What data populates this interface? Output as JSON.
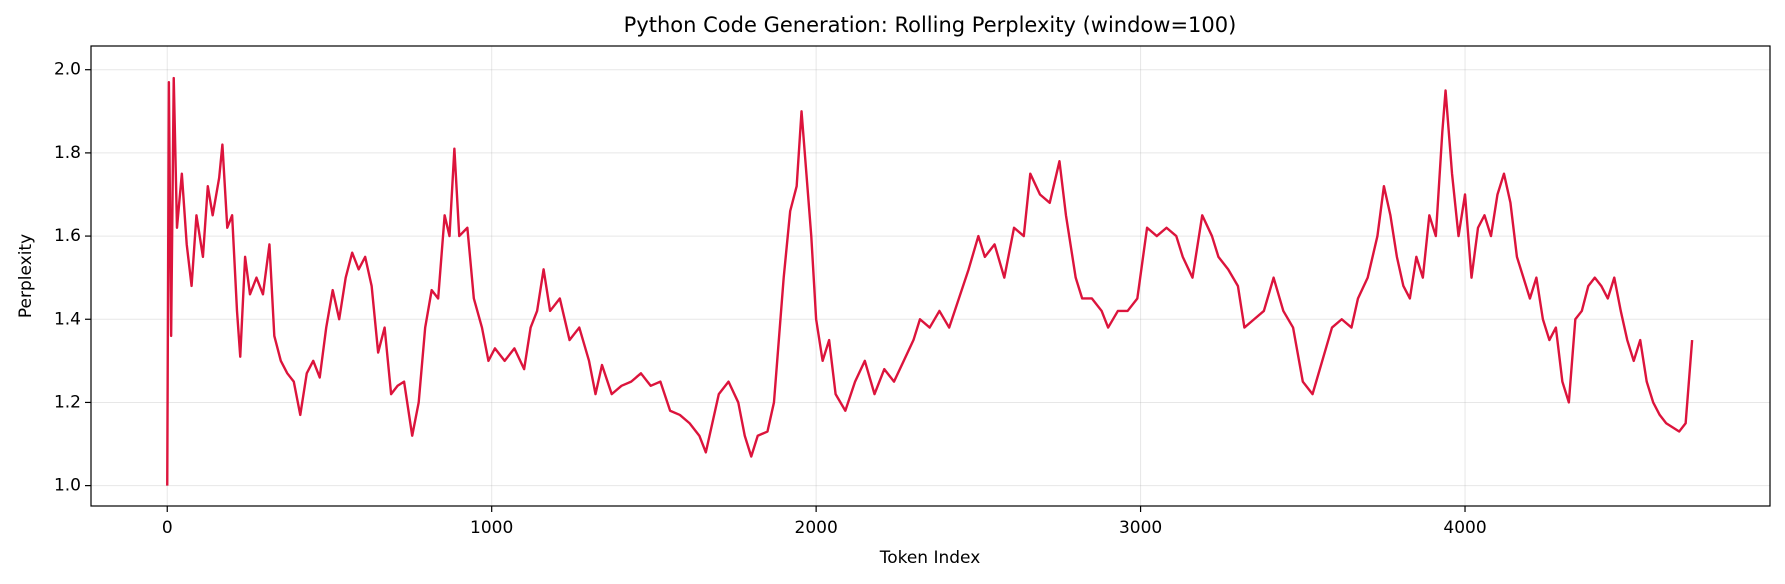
{
  "chart_data": {
    "type": "line",
    "title": "Python Code Generation: Rolling Perplexity (window=100)",
    "x_label": "Token Index",
    "y_label": "Perplexity",
    "x": [
      0,
      5,
      12,
      20,
      30,
      45,
      60,
      75,
      90,
      110,
      125,
      140,
      160,
      170,
      185,
      200,
      215,
      225,
      240,
      255,
      275,
      295,
      315,
      330,
      350,
      370,
      390,
      410,
      430,
      450,
      470,
      490,
      510,
      530,
      550,
      570,
      590,
      610,
      630,
      650,
      670,
      690,
      710,
      730,
      755,
      775,
      795,
      815,
      835,
      855,
      870,
      885,
      900,
      925,
      945,
      970,
      990,
      1010,
      1040,
      1070,
      1100,
      1120,
      1140,
      1160,
      1180,
      1210,
      1240,
      1270,
      1300,
      1320,
      1340,
      1370,
      1400,
      1430,
      1460,
      1490,
      1520,
      1550,
      1580,
      1610,
      1640,
      1660,
      1680,
      1700,
      1730,
      1760,
      1780,
      1800,
      1820,
      1850,
      1870,
      1880,
      1900,
      1920,
      1940,
      1955,
      1970,
      1985,
      2000,
      2020,
      2040,
      2060,
      2090,
      2120,
      2150,
      2180,
      2210,
      2240,
      2270,
      2300,
      2320,
      2350,
      2380,
      2410,
      2440,
      2470,
      2500,
      2520,
      2550,
      2580,
      2610,
      2640,
      2660,
      2690,
      2720,
      2750,
      2770,
      2800,
      2820,
      2850,
      2880,
      2900,
      2930,
      2960,
      2990,
      3020,
      3050,
      3080,
      3110,
      3130,
      3160,
      3190,
      3220,
      3240,
      3270,
      3300,
      3320,
      3350,
      3380,
      3410,
      3440,
      3470,
      3500,
      3530,
      3560,
      3590,
      3620,
      3650,
      3670,
      3700,
      3730,
      3750,
      3770,
      3790,
      3810,
      3830,
      3850,
      3870,
      3890,
      3910,
      3930,
      3940,
      3960,
      3980,
      4000,
      4020,
      4040,
      4060,
      4080,
      4100,
      4120,
      4140,
      4160,
      4180,
      4200,
      4220,
      4240,
      4260,
      4280,
      4300,
      4320,
      4340,
      4360,
      4380,
      4400,
      4420,
      4440,
      4460,
      4480,
      4500,
      4520,
      4540,
      4560,
      4580,
      4600,
      4620,
      4640,
      4660,
      4680,
      4700
    ],
    "series": [
      {
        "name": "Rolling Perplexity",
        "color": "#dc143c",
        "values": [
          1.0,
          1.97,
          1.36,
          1.98,
          1.62,
          1.75,
          1.58,
          1.48,
          1.65,
          1.55,
          1.72,
          1.65,
          1.74,
          1.82,
          1.62,
          1.65,
          1.42,
          1.31,
          1.55,
          1.46,
          1.5,
          1.46,
          1.58,
          1.36,
          1.3,
          1.27,
          1.25,
          1.17,
          1.27,
          1.3,
          1.26,
          1.38,
          1.47,
          1.4,
          1.5,
          1.56,
          1.52,
          1.55,
          1.48,
          1.32,
          1.38,
          1.22,
          1.24,
          1.25,
          1.12,
          1.2,
          1.38,
          1.47,
          1.45,
          1.65,
          1.6,
          1.81,
          1.6,
          1.62,
          1.45,
          1.38,
          1.3,
          1.33,
          1.3,
          1.33,
          1.28,
          1.38,
          1.42,
          1.52,
          1.42,
          1.45,
          1.35,
          1.38,
          1.3,
          1.22,
          1.29,
          1.22,
          1.24,
          1.25,
          1.27,
          1.24,
          1.25,
          1.18,
          1.17,
          1.15,
          1.12,
          1.08,
          1.15,
          1.22,
          1.25,
          1.2,
          1.12,
          1.07,
          1.12,
          1.13,
          1.2,
          1.3,
          1.5,
          1.66,
          1.72,
          1.9,
          1.75,
          1.6,
          1.4,
          1.3,
          1.35,
          1.22,
          1.18,
          1.25,
          1.3,
          1.22,
          1.28,
          1.25,
          1.3,
          1.35,
          1.4,
          1.38,
          1.42,
          1.38,
          1.45,
          1.52,
          1.6,
          1.55,
          1.58,
          1.5,
          1.62,
          1.6,
          1.75,
          1.7,
          1.68,
          1.78,
          1.65,
          1.5,
          1.45,
          1.45,
          1.42,
          1.38,
          1.42,
          1.42,
          1.45,
          1.62,
          1.6,
          1.62,
          1.6,
          1.55,
          1.5,
          1.65,
          1.6,
          1.55,
          1.52,
          1.48,
          1.38,
          1.4,
          1.42,
          1.5,
          1.42,
          1.38,
          1.25,
          1.22,
          1.3,
          1.38,
          1.4,
          1.38,
          1.45,
          1.5,
          1.6,
          1.72,
          1.65,
          1.55,
          1.48,
          1.45,
          1.55,
          1.5,
          1.65,
          1.6,
          1.85,
          1.95,
          1.75,
          1.6,
          1.7,
          1.5,
          1.62,
          1.65,
          1.6,
          1.7,
          1.75,
          1.68,
          1.55,
          1.5,
          1.45,
          1.5,
          1.4,
          1.35,
          1.38,
          1.25,
          1.2,
          1.4,
          1.42,
          1.48,
          1.5,
          1.48,
          1.45,
          1.5,
          1.42,
          1.35,
          1.3,
          1.35,
          1.25,
          1.2,
          1.17,
          1.15,
          1.14,
          1.13,
          1.15,
          1.35
        ]
      }
    ],
    "xlim": [
      -235,
      4940
    ],
    "ylim": [
      0.951,
      2.057
    ],
    "xticks": [
      0,
      1000,
      2000,
      3000,
      4000
    ],
    "yticks": [
      {
        "value": 1.0,
        "label": "1.0"
      },
      {
        "value": 1.2,
        "label": "1.2"
      },
      {
        "value": 1.4,
        "label": "1.4"
      },
      {
        "value": 1.6,
        "label": "1.6"
      },
      {
        "value": 1.8,
        "label": "1.8"
      },
      {
        "value": 2.0,
        "label": "2.0"
      }
    ],
    "grid": true
  }
}
